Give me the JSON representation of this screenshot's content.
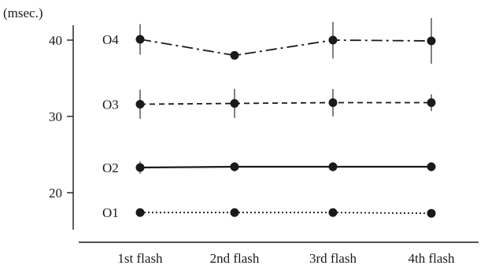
{
  "chart_data": {
    "type": "line",
    "title": "",
    "xlabel": "",
    "ylabel": "(msec.)",
    "categories": [
      "1st flash",
      "2nd flash",
      "3rd flash",
      "4th flash"
    ],
    "yticks": [
      20,
      30,
      40
    ],
    "ylim": [
      15.5,
      42.5
    ],
    "grid": false,
    "legend": "inline-left",
    "series": [
      {
        "name": "O4",
        "style": "dashdot",
        "values": [
          40.1,
          38.0,
          40.0,
          39.9
        ],
        "error": [
          2.0,
          0.3,
          2.4,
          3.0
        ]
      },
      {
        "name": "O3",
        "style": "dashed",
        "values": [
          31.6,
          31.7,
          31.8,
          31.8
        ],
        "error": [
          1.9,
          1.9,
          1.8,
          1.1
        ]
      },
      {
        "name": "O2",
        "style": "solid",
        "values": [
          23.3,
          23.4,
          23.4,
          23.4
        ],
        "error": [
          0.8,
          0.6,
          0.6,
          0.6
        ]
      },
      {
        "name": "O1",
        "style": "dotted",
        "values": [
          17.4,
          17.4,
          17.4,
          17.3
        ],
        "error": [
          0.2,
          0.2,
          0.2,
          0.2
        ]
      }
    ],
    "colors": {
      "ink": "#1a1a1a"
    }
  }
}
